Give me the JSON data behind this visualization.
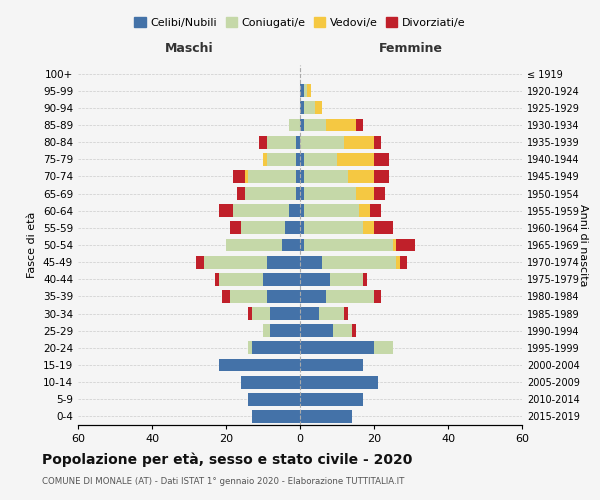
{
  "age_groups": [
    "0-4",
    "5-9",
    "10-14",
    "15-19",
    "20-24",
    "25-29",
    "30-34",
    "35-39",
    "40-44",
    "45-49",
    "50-54",
    "55-59",
    "60-64",
    "65-69",
    "70-74",
    "75-79",
    "80-84",
    "85-89",
    "90-94",
    "95-99",
    "100+"
  ],
  "birth_years": [
    "2015-2019",
    "2010-2014",
    "2005-2009",
    "2000-2004",
    "1995-1999",
    "1990-1994",
    "1985-1989",
    "1980-1984",
    "1975-1979",
    "1970-1974",
    "1965-1969",
    "1960-1964",
    "1955-1959",
    "1950-1954",
    "1945-1949",
    "1940-1944",
    "1935-1939",
    "1930-1934",
    "1925-1929",
    "1920-1924",
    "≤ 1919"
  ],
  "males": {
    "celibe": [
      13,
      14,
      16,
      22,
      13,
      8,
      8,
      9,
      10,
      9,
      5,
      4,
      3,
      1,
      1,
      1,
      1,
      0,
      0,
      0,
      0
    ],
    "coniugato": [
      0,
      0,
      0,
      0,
      1,
      2,
      5,
      10,
      12,
      17,
      15,
      12,
      15,
      14,
      13,
      8,
      8,
      3,
      0,
      0,
      0
    ],
    "vedovo": [
      0,
      0,
      0,
      0,
      0,
      0,
      0,
      0,
      0,
      0,
      0,
      0,
      0,
      0,
      1,
      1,
      0,
      0,
      0,
      0,
      0
    ],
    "divorziato": [
      0,
      0,
      0,
      0,
      0,
      0,
      1,
      2,
      1,
      2,
      0,
      3,
      4,
      2,
      3,
      0,
      2,
      0,
      0,
      0,
      0
    ]
  },
  "females": {
    "nubile": [
      14,
      17,
      21,
      17,
      20,
      9,
      5,
      7,
      8,
      6,
      1,
      1,
      1,
      1,
      1,
      1,
      0,
      1,
      1,
      1,
      0
    ],
    "coniugata": [
      0,
      0,
      0,
      0,
      5,
      5,
      7,
      13,
      9,
      20,
      24,
      16,
      15,
      14,
      12,
      9,
      12,
      6,
      3,
      1,
      0
    ],
    "vedova": [
      0,
      0,
      0,
      0,
      0,
      0,
      0,
      0,
      0,
      1,
      1,
      3,
      3,
      5,
      7,
      10,
      8,
      8,
      2,
      1,
      0
    ],
    "divorziata": [
      0,
      0,
      0,
      0,
      0,
      1,
      1,
      2,
      1,
      2,
      5,
      5,
      3,
      3,
      4,
      4,
      2,
      2,
      0,
      0,
      0
    ]
  },
  "colors": {
    "celibe_nubile": "#4472a8",
    "coniugato_coniugata": "#c5d8a8",
    "vedovo_vedova": "#f5c842",
    "divorziato_divorziata": "#c0202a"
  },
  "title": "Popolazione per età, sesso e stato civile - 2020",
  "subtitle": "COMUNE DI MONALE (AT) - Dati ISTAT 1° gennaio 2020 - Elaborazione TUTTITALIA.IT",
  "xlabel_left": "Maschi",
  "xlabel_right": "Femmine",
  "ylabel_left": "Fasce di età",
  "ylabel_right": "Anni di nascita",
  "xlim": 60,
  "legend_labels": [
    "Celibi/Nubili",
    "Coniugati/e",
    "Vedovi/e",
    "Divorziati/e"
  ],
  "background_color": "#f5f5f5"
}
